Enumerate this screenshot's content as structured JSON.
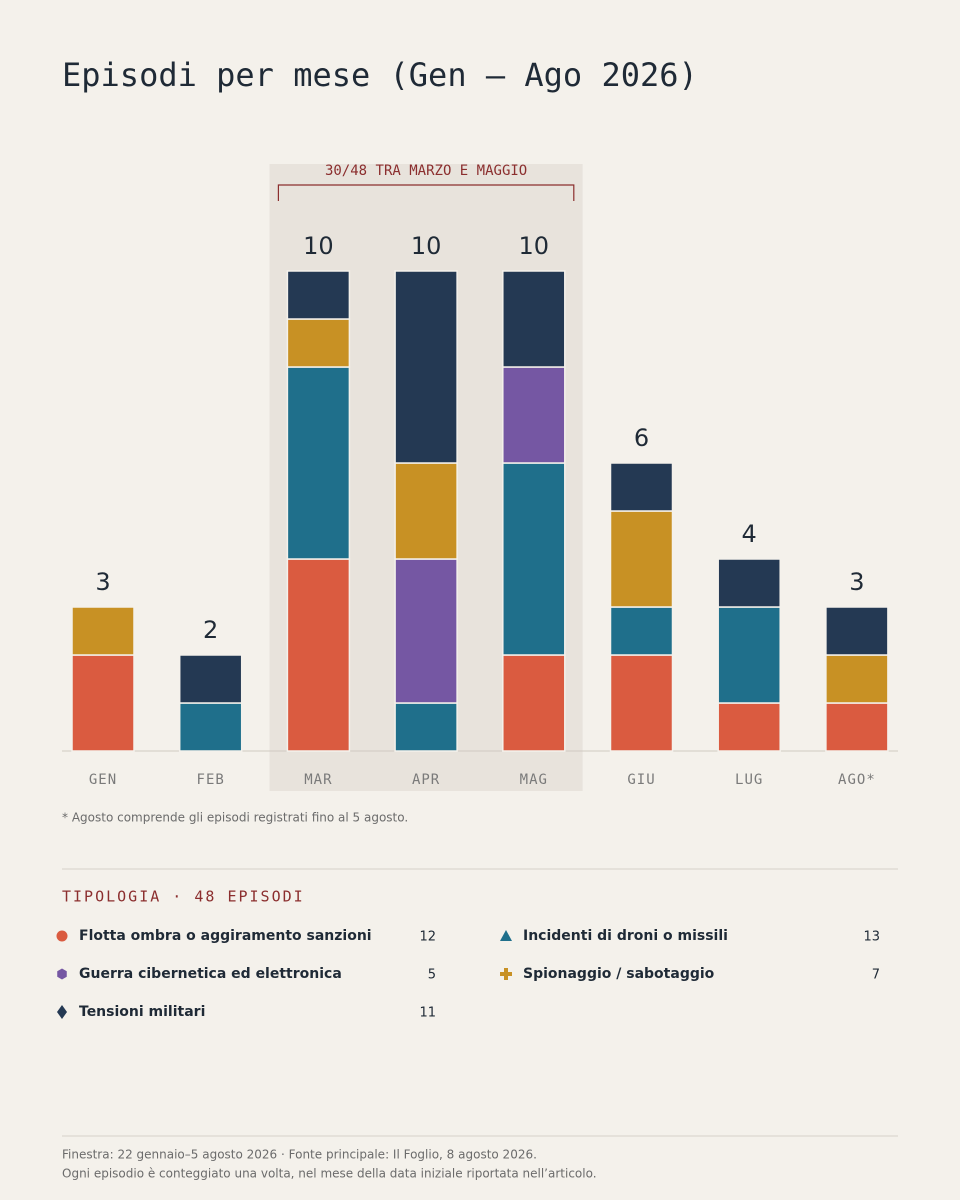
{
  "chart_data": {
    "type": "stacked_bar",
    "title": "Episodi per mese (Gen – Ago 2026)",
    "categories": [
      "GEN",
      "FEB",
      "MAR",
      "APR",
      "MAG",
      "GIU",
      "LUG",
      "AGO*"
    ],
    "series": [
      {
        "name": "Flotta ombra o aggiramento sanzioni",
        "color": "#da5b40",
        "marker": "circle",
        "total": 12,
        "values": [
          2,
          0,
          4,
          0,
          2,
          2,
          1,
          1
        ]
      },
      {
        "name": "Incidenti di droni o missili",
        "color": "#1f6f8b",
        "marker": "triangle",
        "total": 13,
        "values": [
          0,
          1,
          4,
          1,
          4,
          1,
          2,
          0
        ]
      },
      {
        "name": "Guerra cibernetica ed elettronica",
        "color": "#7557a3",
        "marker": "hexagon",
        "total": 5,
        "values": [
          0,
          0,
          0,
          3,
          2,
          0,
          0,
          0
        ]
      },
      {
        "name": "Spionaggio / sabotaggio",
        "color": "#c89124",
        "marker": "plus",
        "total": 7,
        "values": [
          1,
          0,
          1,
          2,
          0,
          2,
          0,
          1
        ]
      },
      {
        "name": "Tensioni militari",
        "color": "#243953",
        "marker": "diamond",
        "total": 11,
        "values": [
          0,
          1,
          1,
          4,
          2,
          1,
          1,
          1
        ]
      }
    ],
    "totals": [
      3,
      2,
      10,
      10,
      10,
      6,
      4,
      3
    ],
    "highlight": {
      "label": "30/48 TRA MARZO E MAGGIO",
      "from": "MAR",
      "to": "MAG"
    },
    "footnote": "* Agosto comprende gli episodi registrati fino al 5 agosto.",
    "legend_title": "TIPOLOGIA · 48 EPISODI",
    "source": [
      "Finestra: 22 gennaio–5 agosto 2026 · Fonte principale: Il Foglio, 8 agosto 2026.",
      "Ogni episodio è conteggiato una volta, nel mese della data iniziale riportata nell’articolo."
    ]
  }
}
